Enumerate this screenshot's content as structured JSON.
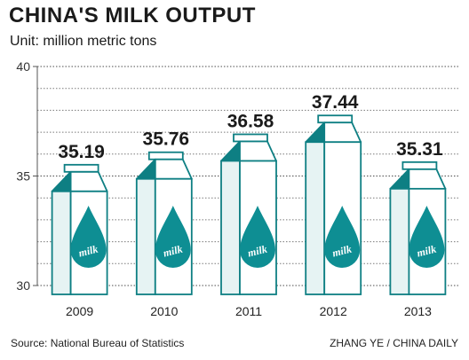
{
  "chart_data": {
    "type": "bar",
    "title": "CHINA'S MILK OUTPUT",
    "subtitle": "Unit: million metric tons",
    "categories": [
      "2009",
      "2010",
      "2011",
      "2012",
      "2013"
    ],
    "values": [
      35.19,
      35.76,
      36.58,
      37.44,
      35.31
    ],
    "value_labels": [
      "35.19",
      "35.76",
      "36.58",
      "37.44",
      "35.31"
    ],
    "ylim": [
      30,
      40
    ],
    "yticks": [
      30,
      35,
      40
    ],
    "grid": true,
    "bar_label": "milk",
    "colors": {
      "carton_fill": "#ffffff",
      "carton_side": "#e6f3f3",
      "carton_stroke": "#0e7f83",
      "carton_top": "#0e7f83",
      "drop": "#0e8e93",
      "grid": "#222222",
      "axis": "#555555"
    }
  },
  "footer": {
    "source": "Source: National Bureau of Statistics",
    "credit": "ZHANG YE / CHINA DAILY"
  }
}
